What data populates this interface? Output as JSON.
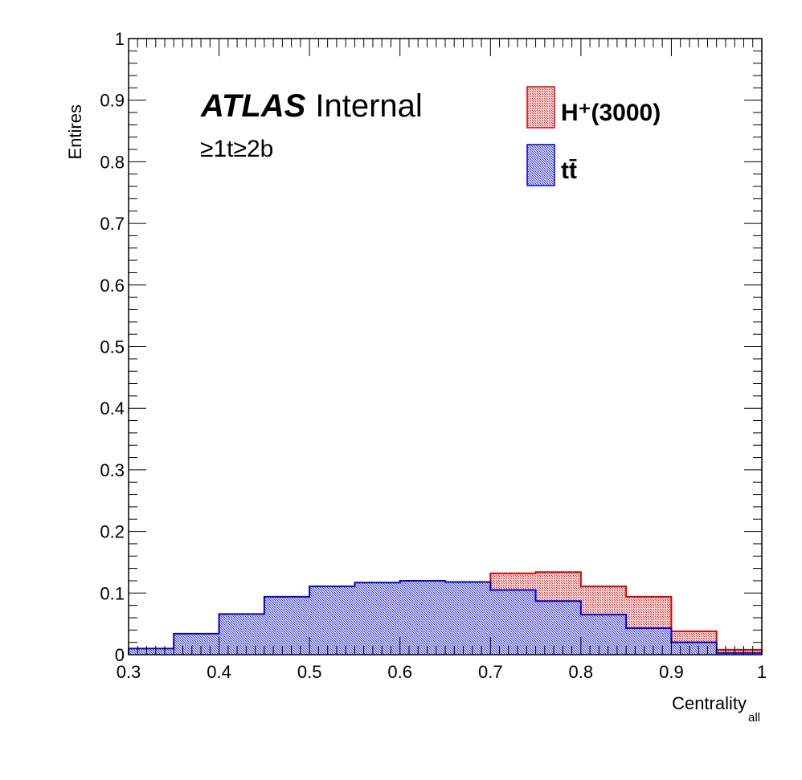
{
  "chart_data": {
    "type": "histogram",
    "xlabel": "Centrality",
    "xlabel_sub": "all",
    "ylabel": "Entires",
    "xlim": [
      0.3,
      1.0
    ],
    "ylim": [
      0,
      1
    ],
    "grid": false,
    "legend_position": "top-right",
    "x_ticks": [
      "0.3",
      "0.4",
      "0.5",
      "0.6",
      "0.7",
      "0.8",
      "0.9",
      "1"
    ],
    "y_ticks": [
      "0",
      "0.1",
      "0.2",
      "0.3",
      "0.4",
      "0.5",
      "0.6",
      "0.7",
      "0.8",
      "0.9",
      "1"
    ],
    "bin_edges": [
      0.3,
      0.35,
      0.4,
      0.45,
      0.5,
      0.55,
      0.6,
      0.65,
      0.7,
      0.75,
      0.8,
      0.85,
      0.9,
      0.95,
      1.0
    ],
    "series": [
      {
        "name": "H⁺(3000)",
        "color": "#e00000",
        "fill": "#c83c3c",
        "values": [
          0.007,
          0.02,
          0.047,
          0.045,
          0.062,
          0.076,
          0.1,
          0.114,
          0.132,
          0.134,
          0.111,
          0.094,
          0.038,
          0.008
        ]
      },
      {
        "name": "tt̄",
        "color": "#0000e0",
        "fill": "#3c3cc8",
        "values": [
          0.01,
          0.034,
          0.066,
          0.094,
          0.111,
          0.117,
          0.12,
          0.118,
          0.105,
          0.087,
          0.065,
          0.043,
          0.02,
          0.003
        ]
      }
    ],
    "annotations": {
      "experiment": "ATLAS",
      "status": "Internal",
      "selection": "≥1t≥2b"
    }
  }
}
